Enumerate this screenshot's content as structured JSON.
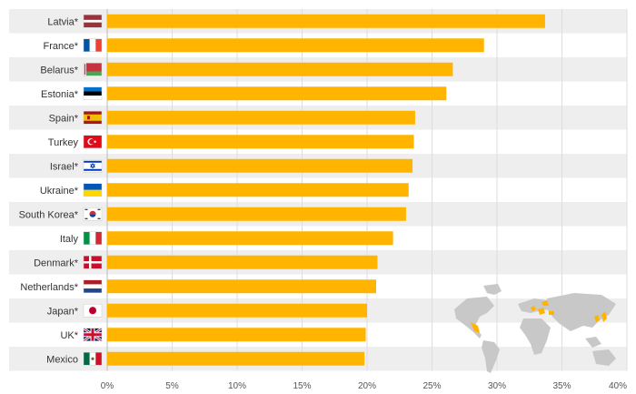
{
  "chart_data": {
    "type": "bar",
    "orientation": "horizontal",
    "categories": [
      "Latvia*",
      "France*",
      "Belarus*",
      "Estonia*",
      "Spain*",
      "Turkey",
      "Israel*",
      "Ukraine*",
      "South Korea*",
      "Italy",
      "Denmark*",
      "Netherlands*",
      "Japan*",
      "UK*",
      "Mexico"
    ],
    "flags": [
      "latvia-flag-icon",
      "france-flag-icon",
      "belarus-flag-icon",
      "estonia-flag-icon",
      "spain-flag-icon",
      "turkey-flag-icon",
      "israel-flag-icon",
      "ukraine-flag-icon",
      "south-korea-flag-icon",
      "italy-flag-icon",
      "denmark-flag-icon",
      "netherlands-flag-icon",
      "japan-flag-icon",
      "uk-flag-icon",
      "mexico-flag-icon"
    ],
    "values": [
      33.7,
      29.0,
      26.6,
      26.1,
      23.7,
      23.6,
      23.5,
      23.2,
      23.0,
      22.0,
      20.8,
      20.7,
      20.0,
      19.9,
      19.8
    ],
    "xlim": [
      0,
      40
    ],
    "xticks": [
      "0%",
      "5%",
      "10%",
      "15%",
      "20%",
      "25%",
      "30%",
      "35%",
      "40%"
    ],
    "grid": true,
    "bar_color": "#FFB400",
    "band_color": "#EEEEEE",
    "title": "",
    "xlabel": "",
    "ylabel": "",
    "inset": "world-map-icon"
  }
}
